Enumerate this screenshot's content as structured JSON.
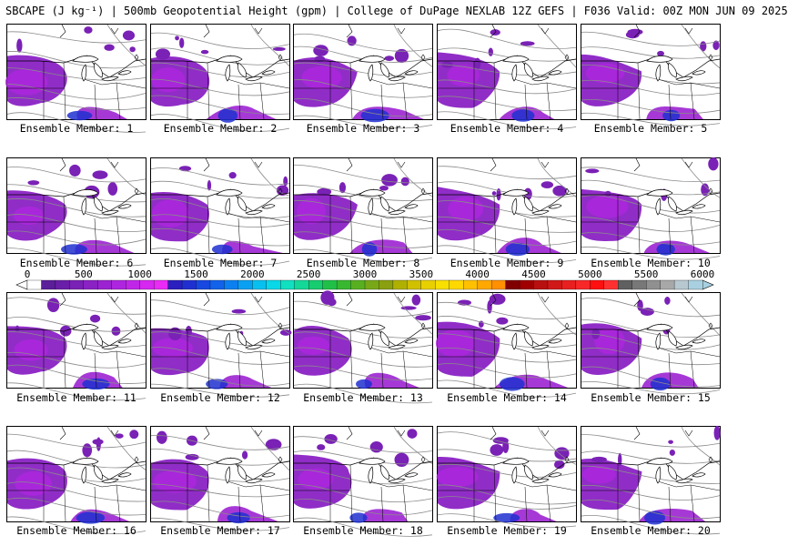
{
  "header": {
    "title": "SBCAPE (J kg⁻¹) | 500mb Geopotential Height (gpm) | College of DuPage NEXLAB 12Z GEFS | F036 Valid: 00Z MON JUN 09 2025"
  },
  "members": [
    {
      "label": "Ensemble Member: 1"
    },
    {
      "label": "Ensemble Member: 2"
    },
    {
      "label": "Ensemble Member: 3"
    },
    {
      "label": "Ensemble Member: 4"
    },
    {
      "label": "Ensemble Member: 5"
    },
    {
      "label": "Ensemble Member: 6"
    },
    {
      "label": "Ensemble Member: 7"
    },
    {
      "label": "Ensemble Member: 8"
    },
    {
      "label": "Ensemble Member: 9"
    },
    {
      "label": "Ensemble Member: 10"
    },
    {
      "label": "Ensemble Member: 11"
    },
    {
      "label": "Ensemble Member: 12"
    },
    {
      "label": "Ensemble Member: 13"
    },
    {
      "label": "Ensemble Member: 14"
    },
    {
      "label": "Ensemble Member: 15"
    },
    {
      "label": "Ensemble Member: 16"
    },
    {
      "label": "Ensemble Member: 17"
    },
    {
      "label": "Ensemble Member: 18"
    },
    {
      "label": "Ensemble Member: 19"
    },
    {
      "label": "Ensemble Member: 20"
    }
  ],
  "colorbar": {
    "ticks": [
      "0",
      "500",
      "1000",
      "1500",
      "2000",
      "2500",
      "3000",
      "3500",
      "4000",
      "4500",
      "5000",
      "5500",
      "6000"
    ],
    "min": 0,
    "max": 6000,
    "bins": 48,
    "colors": [
      "#ffffff",
      "#5b1f9a",
      "#6a1fa8",
      "#7a21b6",
      "#8a22c4",
      "#9c23d2",
      "#ae25df",
      "#c026e8",
      "#d628f0",
      "#e92bf5",
      "#2b1fbf",
      "#2030d0",
      "#1848e0",
      "#1262ea",
      "#0c80f0",
      "#0aa0f2",
      "#08c0f0",
      "#08d8e8",
      "#10e0c0",
      "#14d898",
      "#18cc70",
      "#20c048",
      "#38b830",
      "#58b020",
      "#78a818",
      "#8aa010",
      "#b0b000",
      "#d0c000",
      "#e8d000",
      "#f8e000",
      "#ffd800",
      "#ffc000",
      "#ffa800",
      "#ff9000",
      "#800000",
      "#a00000",
      "#b81010",
      "#d01818",
      "#e82020",
      "#f82828",
      "#ff1010",
      "#ff3030",
      "#606060",
      "#787878",
      "#909090",
      "#a8a8a8",
      "#b8c8d0",
      "#a8d0e0"
    ]
  }
}
